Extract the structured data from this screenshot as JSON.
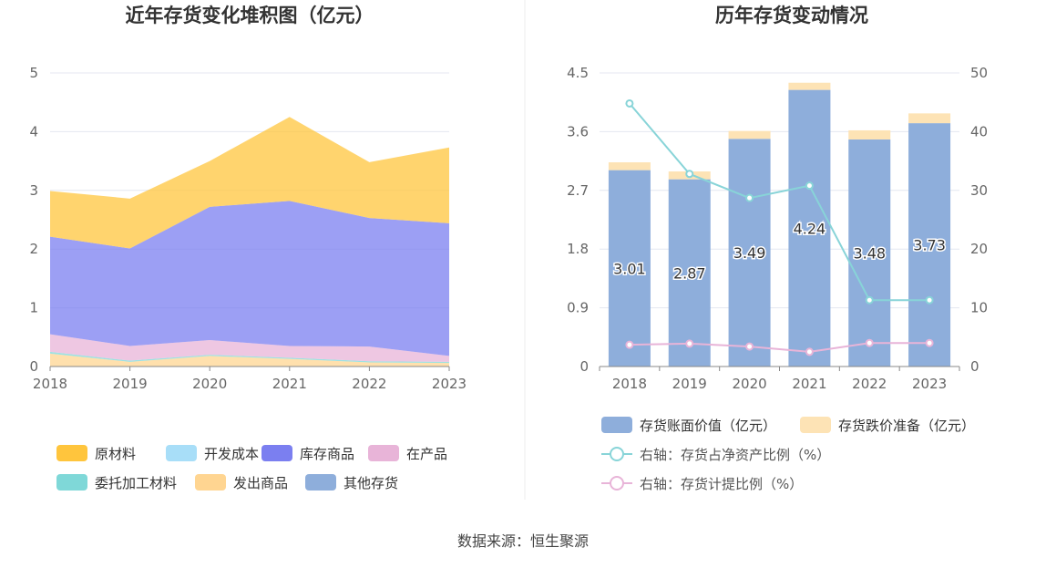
{
  "source_label": "数据来源：恒生聚源",
  "chart_data": [
    {
      "type": "area",
      "stacked": true,
      "title": "近年存货变化堆积图（亿元）",
      "categories": [
        "2018",
        "2019",
        "2020",
        "2021",
        "2022",
        "2023"
      ],
      "ylim": [
        0,
        5
      ],
      "y_ticks": [
        "0",
        "1",
        "2",
        "3",
        "4",
        "5"
      ],
      "grid": true,
      "legend_position": "bottom",
      "series": [
        {
          "name": "原材料",
          "color": "#ffc53d",
          "values": [
            0.78,
            0.85,
            0.78,
            1.43,
            0.95,
            1.29
          ]
        },
        {
          "name": "开发成本",
          "color": "#a8def8",
          "values": [
            0,
            0,
            0,
            0,
            0,
            0
          ]
        },
        {
          "name": "库存商品",
          "color": "#7b7ff0",
          "values": [
            1.66,
            1.66,
            2.27,
            2.47,
            2.19,
            2.26
          ]
        },
        {
          "name": "在产品",
          "color": "#e8b4d8",
          "values": [
            0.3,
            0.25,
            0.25,
            0.2,
            0.25,
            0.1
          ]
        },
        {
          "name": "委托加工材料",
          "color": "#7fd8d8",
          "values": [
            0.03,
            0.02,
            0.02,
            0.02,
            0.02,
            0.02
          ]
        },
        {
          "name": "发出商品",
          "color": "#ffd591",
          "values": [
            0.22,
            0.08,
            0.18,
            0.13,
            0.07,
            0.06
          ]
        },
        {
          "name": "其他存货",
          "color": "#8eaedb",
          "values": [
            0,
            0,
            0,
            0,
            0,
            0
          ]
        }
      ]
    },
    {
      "type": "bar",
      "title": "历年存货变动情况",
      "categories": [
        "2018",
        "2019",
        "2020",
        "2021",
        "2022",
        "2023"
      ],
      "ylim": [
        0,
        4.5
      ],
      "y_ticks": [
        "0",
        "0.9",
        "1.8",
        "2.7",
        "3.6",
        "4.5"
      ],
      "y2lim": [
        0,
        50
      ],
      "y2_ticks": [
        "0",
        "10",
        "20",
        "30",
        "40",
        "50"
      ],
      "grid": true,
      "legend_position": "bottom",
      "series": [
        {
          "name": "存货账面价值（亿元）",
          "kind": "bar",
          "color": "#8eaedb",
          "values": [
            3.01,
            2.87,
            3.49,
            4.24,
            3.48,
            3.73
          ],
          "labels": [
            "3.01",
            "2.87",
            "3.49",
            "4.24",
            "3.48",
            "3.73"
          ]
        },
        {
          "name": "存货跌价准备（亿元）",
          "kind": "bar",
          "color": "#fde3b5",
          "values": [
            0.12,
            0.12,
            0.12,
            0.11,
            0.14,
            0.15
          ]
        },
        {
          "name": "右轴：存货占净资产比例（%）",
          "kind": "line",
          "axis": "right",
          "color": "#88d4d8",
          "values": [
            44.8,
            32.8,
            28.7,
            30.8,
            11.3,
            11.3
          ]
        },
        {
          "name": "右轴：存货计提比例（%）",
          "kind": "line",
          "axis": "right",
          "color": "#e8b4d8",
          "values": [
            3.7,
            3.9,
            3.4,
            2.5,
            4.0,
            4.0
          ]
        }
      ]
    }
  ]
}
